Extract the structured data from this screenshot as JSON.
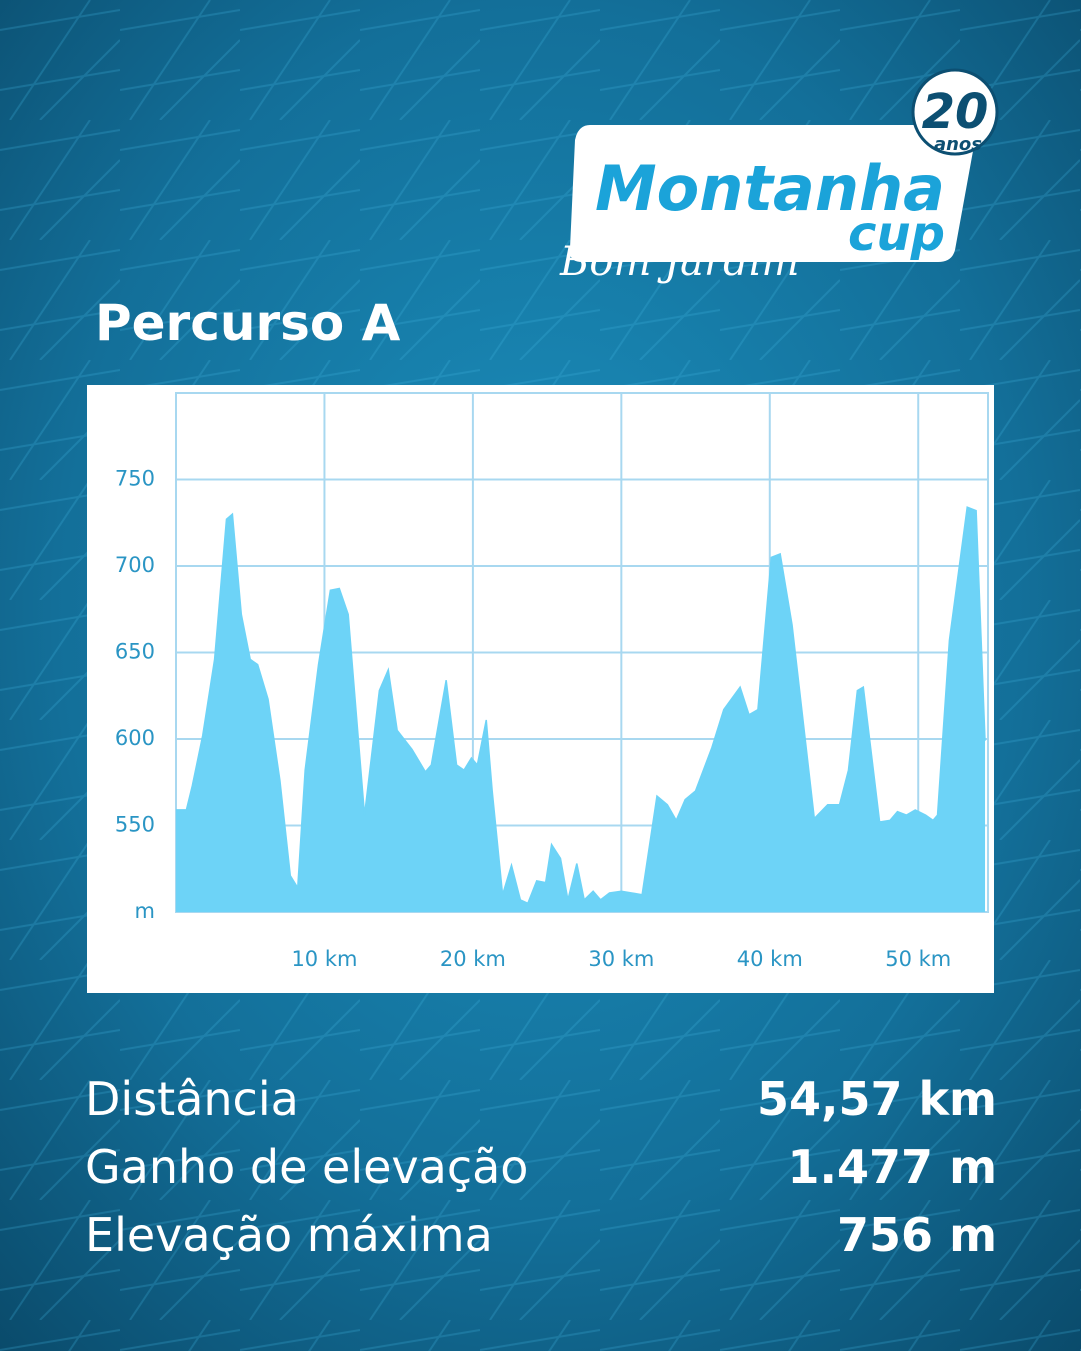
{
  "logo": {
    "name": "Montanha",
    "cup": "cup",
    "badge_number": "20",
    "badge_text": "anos",
    "place": "Bom Jardim"
  },
  "header": {
    "title": "Percurso A"
  },
  "chart_data": {
    "type": "area",
    "color": "#6dd3f7",
    "grid": true,
    "x": [
      0,
      0.7,
      1.1,
      1.8,
      2.6,
      3.4,
      3.8,
      4.4,
      5.0,
      5.5,
      6.2,
      7.0,
      7.7,
      8.2,
      8.7,
      9.6,
      10.4,
      11.0,
      11.6,
      12.7,
      13.7,
      14.3,
      14.9,
      15.9,
      16.8,
      17.2,
      18.2,
      18.9,
      19.4,
      19.9,
      20.3,
      20.9,
      21.3,
      22.0,
      22.6,
      23.2,
      23.7,
      24.3,
      24.9,
      25.3,
      25.9,
      26.4,
      27.0,
      27.5,
      28.1,
      28.6,
      29.2,
      30.0,
      30.7,
      31.4,
      32.4,
      33.1,
      33.7,
      34.3,
      35.0,
      36.1,
      36.9,
      38.0,
      38.6,
      39.2,
      40.1,
      40.7,
      41.5,
      43.0,
      43.9,
      44.7,
      45.3,
      45.9,
      46.3,
      47.4,
      48.1,
      48.6,
      49.2,
      49.8,
      50.5,
      51.0,
      51.3,
      52.1,
      53.3,
      53.9,
      54.5
    ],
    "values": [
      559,
      559,
      573,
      602,
      646,
      727,
      730,
      672,
      646,
      643,
      623,
      576,
      521,
      514,
      582,
      643,
      686,
      687,
      672,
      556,
      628,
      640,
      605,
      594,
      581,
      585,
      634,
      585,
      582,
      589,
      585,
      611,
      570,
      510,
      527,
      507,
      505,
      518,
      517,
      539,
      531,
      507,
      528,
      507,
      512,
      507,
      511,
      512,
      511,
      510,
      567,
      562,
      553,
      565,
      570,
      595,
      617,
      630,
      614,
      617,
      705,
      707,
      666,
      554,
      562,
      562,
      582,
      628,
      630,
      552,
      553,
      558,
      556,
      559,
      556,
      553,
      556,
      657,
      734,
      732,
      599
    ],
    "xlim": [
      0,
      54.7
    ],
    "ylim": [
      500,
      800
    ],
    "xticks": [
      {
        "value": 10,
        "label": "10 km"
      },
      {
        "value": 20,
        "label": "20 km"
      },
      {
        "value": 30,
        "label": "30 km"
      },
      {
        "value": 40,
        "label": "40 km"
      },
      {
        "value": 50,
        "label": "50 km"
      }
    ],
    "yticks": [
      {
        "value": 500,
        "label": "m"
      },
      550,
      600,
      650,
      700,
      750
    ]
  },
  "stats": [
    {
      "label": "Distância",
      "value": "54,57 km"
    },
    {
      "label": "Ganho de elevação",
      "value": "1.477 m"
    },
    {
      "label": "Elevação máxima",
      "value": "756 m"
    }
  ]
}
